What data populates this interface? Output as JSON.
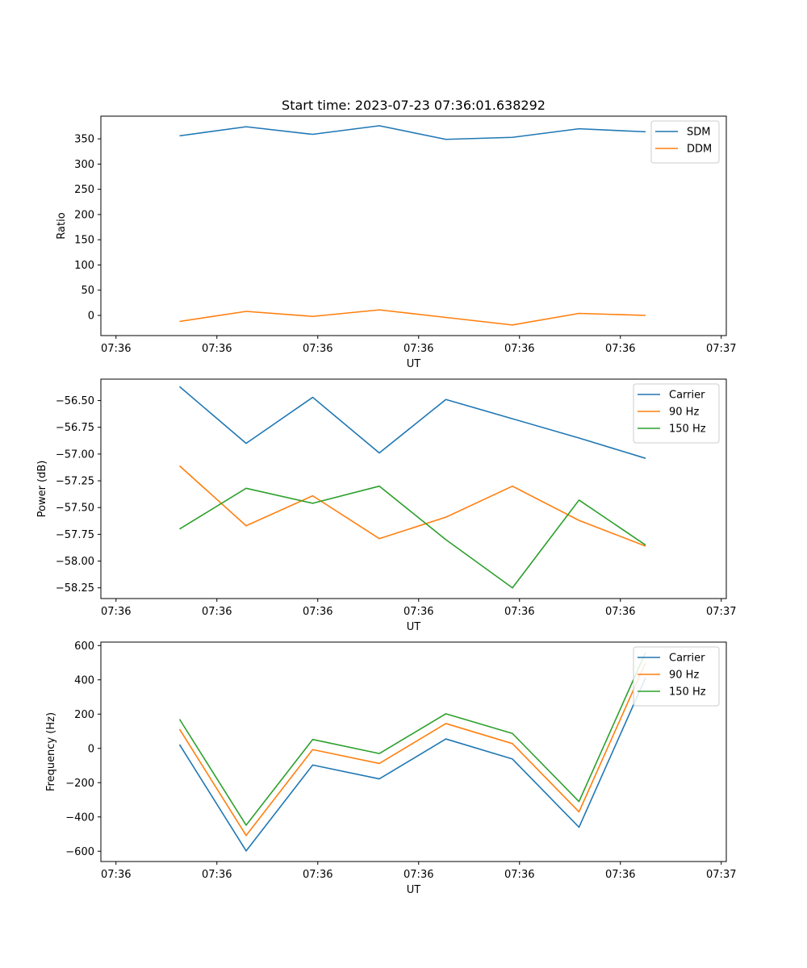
{
  "chart_data": [
    {
      "type": "line",
      "title": "Start time: 2023-07-23 07:36:01.638292",
      "xlabel": "UT",
      "ylabel": "Ratio",
      "x": [
        0.63,
        1.29,
        1.95,
        2.61,
        3.27,
        3.93,
        4.59,
        5.25
      ],
      "xlim": [
        -0.15,
        6.05
      ],
      "x_ticks": [
        0.0,
        1.0,
        2.0,
        3.0,
        4.0,
        5.0,
        6.0
      ],
      "x_tick_labels": [
        "07:36",
        "07:36",
        "07:36",
        "07:36",
        "07:36",
        "07:36",
        "07:37"
      ],
      "ylim": [
        -40,
        395
      ],
      "y_ticks": [
        0,
        50,
        100,
        150,
        200,
        250,
        300,
        350
      ],
      "y_tick_labels": [
        "0",
        "50",
        "100",
        "150",
        "200",
        "250",
        "300",
        "350"
      ],
      "legend_position": "top-right",
      "series": [
        {
          "name": "SDM",
          "color": "#1f77b4",
          "values": [
            356,
            374,
            359,
            376,
            349,
            353,
            370,
            364
          ]
        },
        {
          "name": "DDM",
          "color": "#ff7f0e",
          "values": [
            -12,
            8,
            -2,
            11,
            -4,
            -19,
            4,
            0
          ]
        }
      ]
    },
    {
      "type": "line",
      "title": "",
      "xlabel": "UT",
      "ylabel": "Power (dB)",
      "x": [
        0.63,
        1.29,
        1.95,
        2.61,
        3.27,
        3.93,
        4.59,
        5.25
      ],
      "xlim": [
        -0.15,
        6.05
      ],
      "x_ticks": [
        0.0,
        1.0,
        2.0,
        3.0,
        4.0,
        5.0,
        6.0
      ],
      "x_tick_labels": [
        "07:36",
        "07:36",
        "07:36",
        "07:36",
        "07:36",
        "07:36",
        "07:37"
      ],
      "ylim": [
        -58.35,
        -56.3
      ],
      "y_ticks": [
        -58.25,
        -58.0,
        -57.75,
        -57.5,
        -57.25,
        -57.0,
        -56.75,
        -56.5
      ],
      "y_tick_labels": [
        "−58.25",
        "−58.00",
        "−57.75",
        "−57.50",
        "−57.25",
        "−57.00",
        "−56.75",
        "−56.50"
      ],
      "legend_position": "top-right",
      "series": [
        {
          "name": "Carrier",
          "color": "#1f77b4",
          "values": [
            -56.37,
            -56.9,
            -56.47,
            -56.99,
            -56.49,
            -56.67,
            -56.85,
            -57.04
          ]
        },
        {
          "name": "90 Hz",
          "color": "#ff7f0e",
          "values": [
            -57.11,
            -57.67,
            -57.39,
            -57.79,
            -57.59,
            -57.3,
            -57.62,
            -57.86
          ]
        },
        {
          "name": "150 Hz",
          "color": "#2ca02c",
          "values": [
            -57.7,
            -57.32,
            -57.46,
            -57.3,
            -57.8,
            -58.25,
            -57.43,
            -57.85
          ]
        }
      ]
    },
    {
      "type": "line",
      "title": "",
      "xlabel": "UT",
      "ylabel": "Frequency (Hz)",
      "x": [
        0.63,
        1.29,
        1.95,
        2.61,
        3.27,
        3.93,
        4.59,
        5.25
      ],
      "xlim": [
        -0.15,
        6.05
      ],
      "x_ticks": [
        0.0,
        1.0,
        2.0,
        3.0,
        4.0,
        5.0,
        6.0
      ],
      "x_tick_labels": [
        "07:36",
        "07:36",
        "07:36",
        "07:36",
        "07:36",
        "07:36",
        "07:37"
      ],
      "ylim": [
        -660,
        620
      ],
      "y_ticks": [
        -600,
        -400,
        -200,
        0,
        200,
        400,
        600
      ],
      "y_tick_labels": [
        "−600",
        "−400",
        "−200",
        "0",
        "200",
        "400",
        "600"
      ],
      "legend_position": "top-right",
      "series": [
        {
          "name": "Carrier",
          "color": "#1f77b4",
          "values": [
            22,
            -598,
            -97,
            -178,
            55,
            -62,
            -460,
            413
          ]
        },
        {
          "name": "90 Hz",
          "color": "#ff7f0e",
          "values": [
            112,
            -508,
            -7,
            -88,
            145,
            28,
            -370,
            500
          ]
        },
        {
          "name": "150 Hz",
          "color": "#2ca02c",
          "values": [
            170,
            -448,
            52,
            -30,
            202,
            87,
            -310,
            560
          ]
        }
      ]
    }
  ]
}
